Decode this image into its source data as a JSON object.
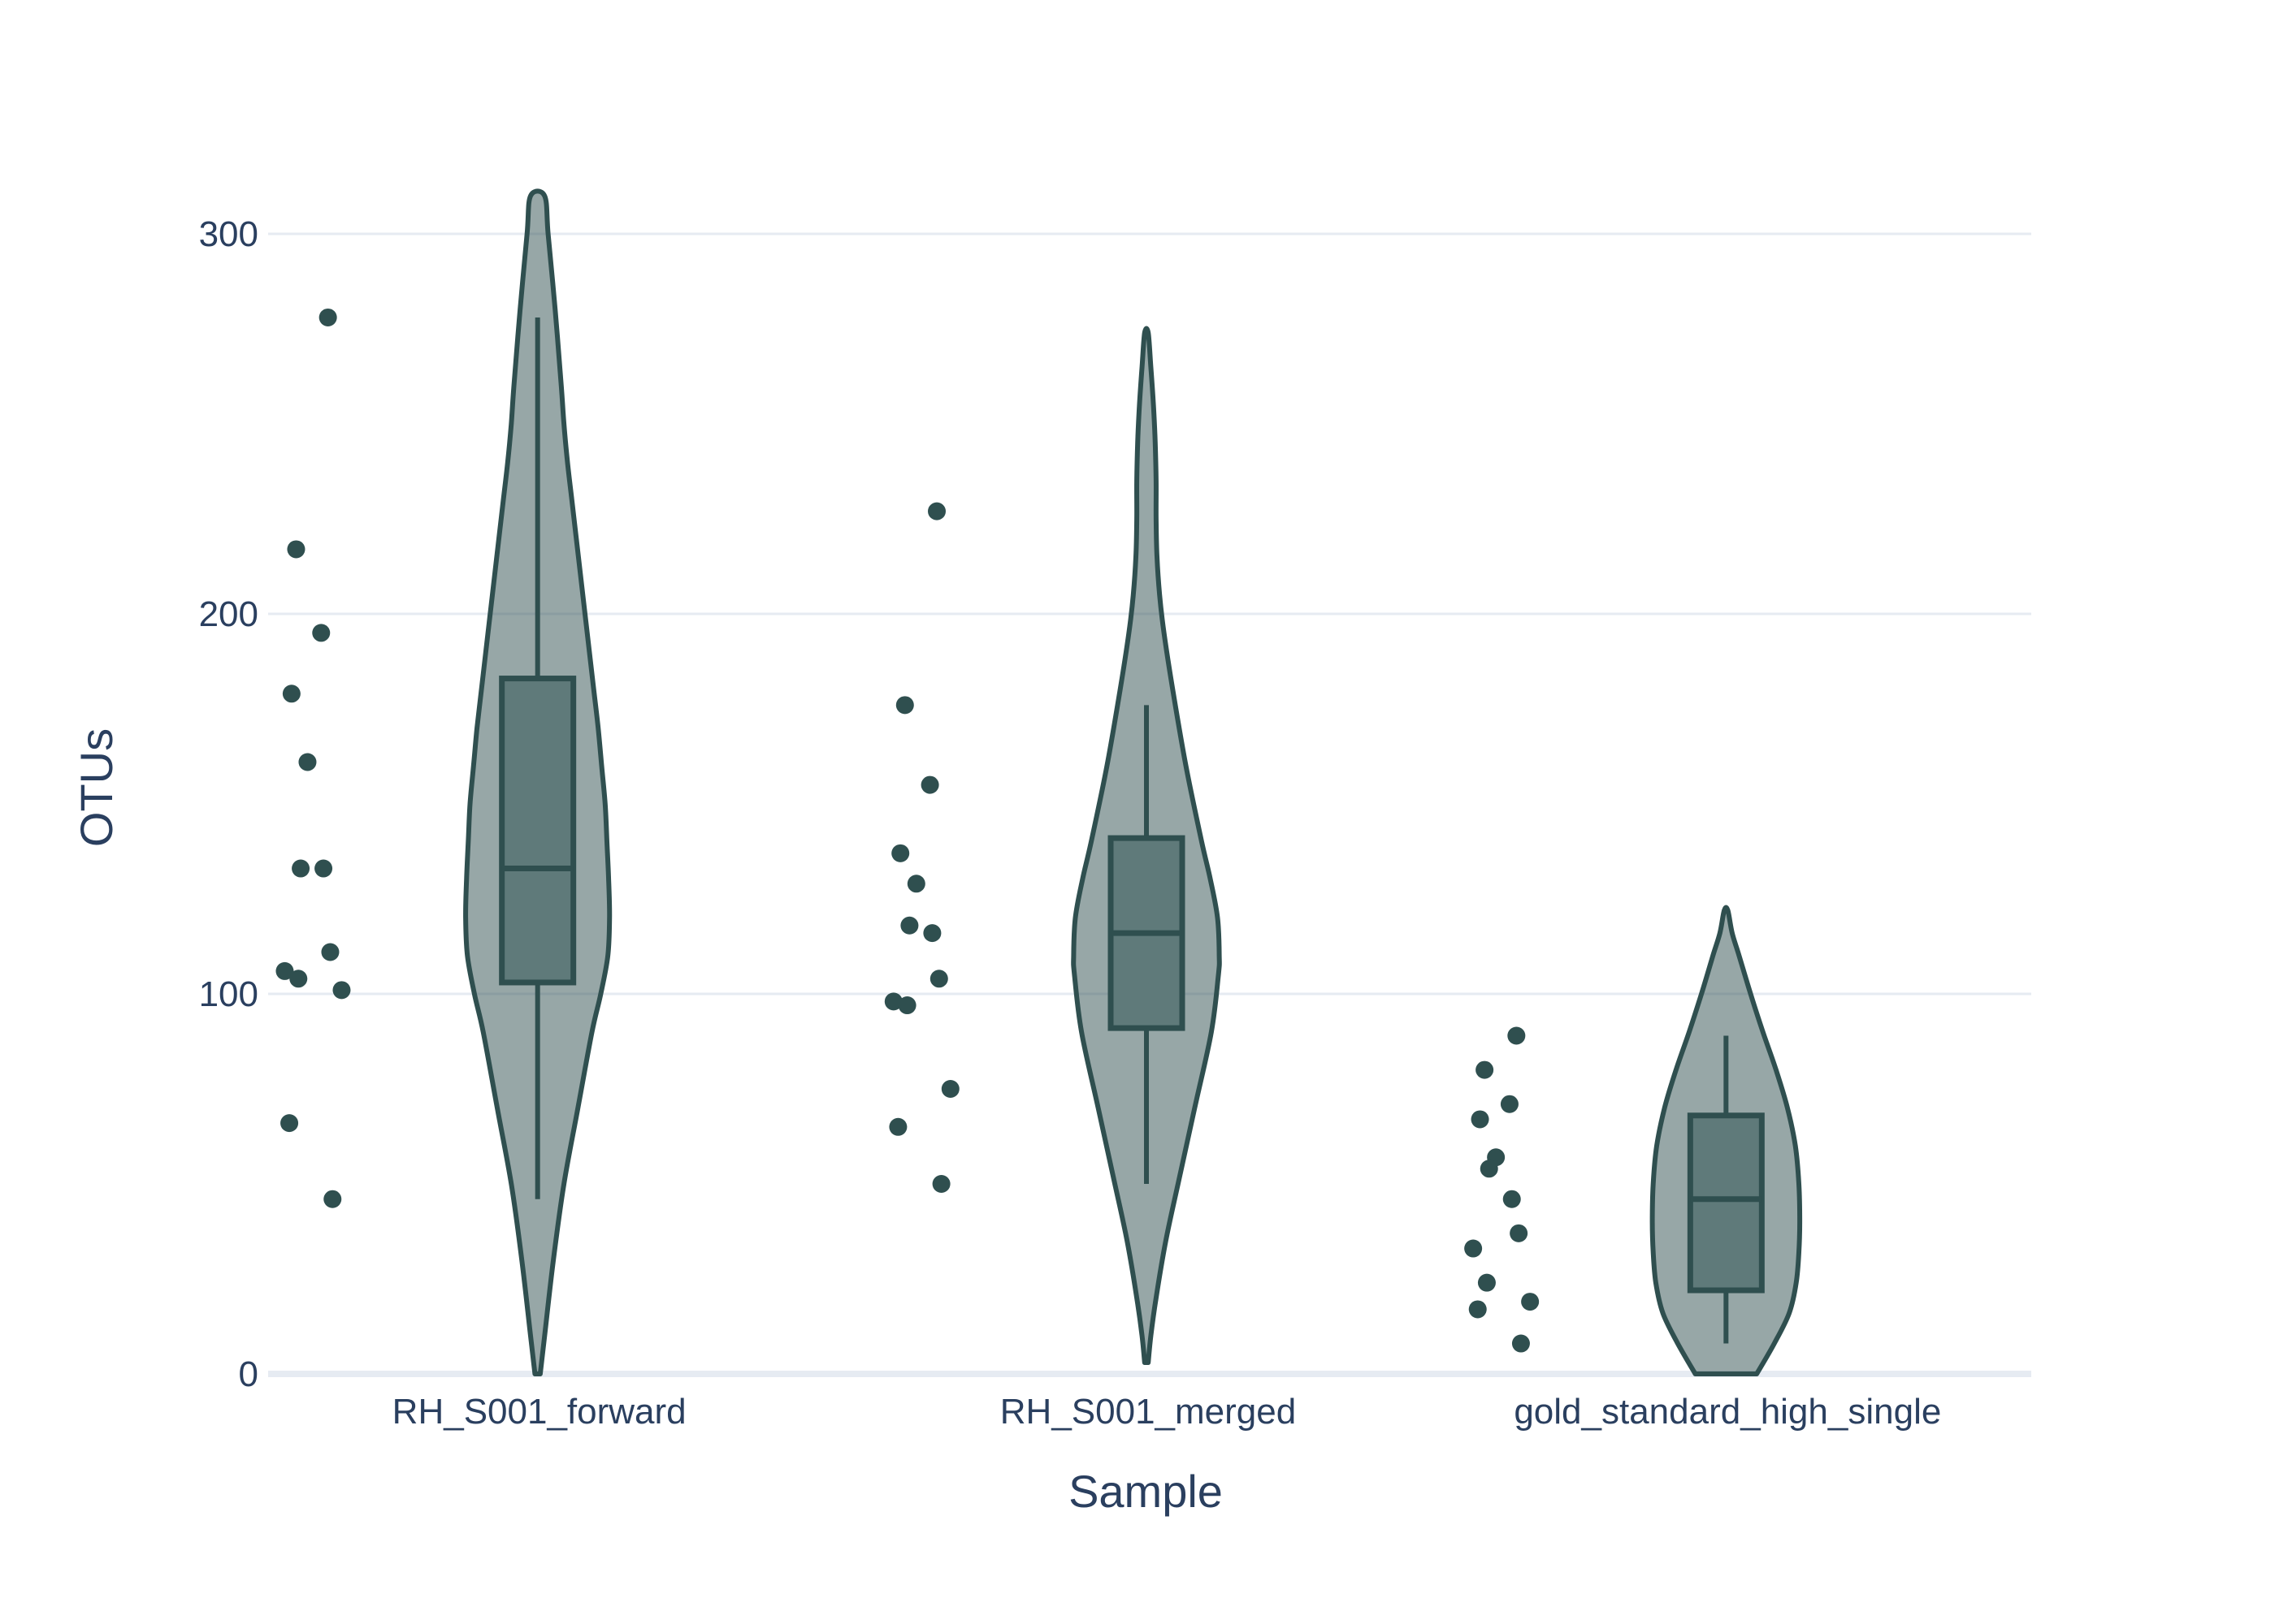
{
  "chart_data": {
    "type": "violin",
    "title": "",
    "xlabel": "Sample",
    "ylabel": "OTUs",
    "ylim": [
      0,
      310
    ],
    "yticks": [
      0,
      100,
      200,
      300
    ],
    "ytick_labels": [
      "0",
      "100",
      "200",
      "300"
    ],
    "grid": true,
    "legend": "none",
    "colors": {
      "fill": "#2f4f4f",
      "line": "#2f4f4f",
      "grid": "#e6ebf2",
      "text": "#2a3f5f"
    },
    "categories": [
      "RH_S001_forward",
      "RH_S001_merged",
      "gold_standard_high_single"
    ],
    "groups": [
      {
        "category": "RH_S001_forward",
        "points": [
          278,
          217,
          195,
          179,
          161,
          133,
          133,
          111,
          106,
          104,
          101,
          66,
          46
        ],
        "box": {
          "q1": 103,
          "median": 133,
          "q3": 183,
          "whisker_low": 46,
          "whisker_high": 278
        },
        "violin": {
          "y": [
            0,
            10,
            30,
            50,
            70,
            90,
            100,
            110,
            120,
            130,
            140,
            150,
            160,
            170,
            180,
            190,
            200,
            210,
            220,
            230,
            240,
            250,
            260,
            280,
            300,
            310
          ],
          "width": [
            0.03,
            0.08,
            0.18,
            0.3,
            0.46,
            0.62,
            0.72,
            0.8,
            0.82,
            0.81,
            0.79,
            0.77,
            0.73,
            0.69,
            0.64,
            0.59,
            0.54,
            0.49,
            0.44,
            0.39,
            0.34,
            0.3,
            0.27,
            0.2,
            0.12,
            0.08
          ]
        }
      },
      {
        "category": "RH_S001_merged",
        "points": [
          227,
          176,
          155,
          137,
          129,
          118,
          116,
          104,
          98,
          97,
          75,
          65,
          50
        ],
        "box": {
          "q1": 91,
          "median": 116,
          "q3": 141,
          "whisker_low": 50,
          "whisker_high": 176
        },
        "violin": {
          "y": [
            3,
            10,
            20,
            35,
            50,
            70,
            90,
            105,
            110,
            120,
            130,
            140,
            160,
            180,
            195,
            205,
            215,
            225,
            235,
            245,
            255,
            265,
            274
          ],
          "width": [
            0.02,
            0.05,
            0.11,
            0.22,
            0.36,
            0.55,
            0.74,
            0.82,
            0.83,
            0.81,
            0.73,
            0.63,
            0.45,
            0.3,
            0.2,
            0.15,
            0.12,
            0.11,
            0.11,
            0.1,
            0.08,
            0.05,
            0.02
          ]
        }
      },
      {
        "category": "gold_standard_high_single",
        "points": [
          89,
          80,
          71,
          67,
          57,
          54,
          46,
          37,
          33,
          24,
          19,
          17,
          8
        ],
        "box": {
          "q1": 22,
          "median": 46,
          "q3": 68,
          "whisker_low": 8,
          "whisker_high": 89
        },
        "violin": {
          "y": [
            0,
            8,
            16,
            24,
            32,
            40,
            50,
            60,
            70,
            80,
            90,
            100,
            110,
            116,
            122
          ],
          "width": [
            0.35,
            0.55,
            0.72,
            0.8,
            0.83,
            0.84,
            0.83,
            0.79,
            0.7,
            0.57,
            0.42,
            0.28,
            0.15,
            0.07,
            0.02
          ]
        }
      }
    ]
  }
}
